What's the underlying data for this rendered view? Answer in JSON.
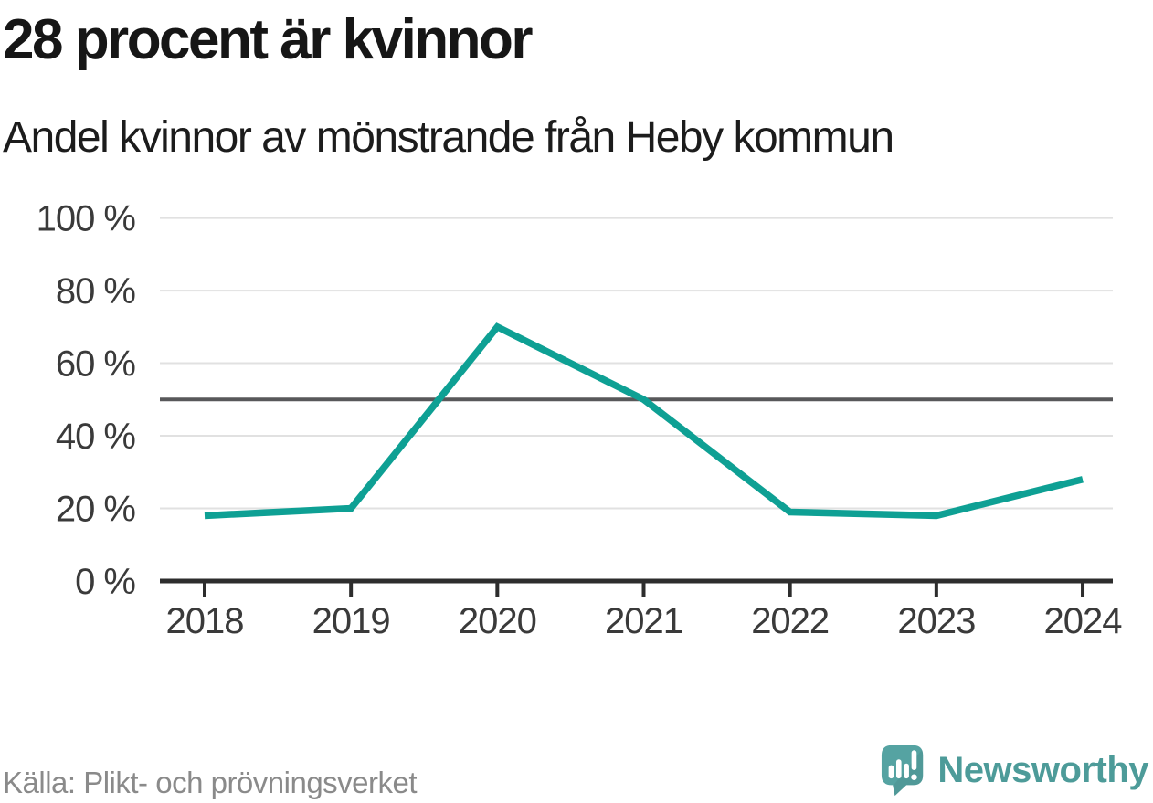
{
  "header": {
    "title": "28 procent är kvinnor",
    "subtitle": "Andel kvinnor av mönstrande från Heby kommun"
  },
  "chart_data": {
    "type": "line",
    "title": "28 procent är kvinnor",
    "subtitle": "Andel kvinnor av mönstrande från Heby kommun",
    "categories": [
      "2018",
      "2019",
      "2020",
      "2021",
      "2022",
      "2023",
      "2024"
    ],
    "series": [
      {
        "name": "Andel kvinnor av mönstrande",
        "values": [
          18,
          20,
          70,
          50,
          19,
          18,
          28
        ]
      }
    ],
    "unit": "percent",
    "ylim": [
      0,
      100
    ],
    "yticks": [
      0,
      20,
      40,
      60,
      80,
      100
    ],
    "ytick_labels": [
      "0 %",
      "20 %",
      "40 %",
      "60 %",
      "80 %",
      "100 %"
    ],
    "reference_line": 50,
    "grid": true,
    "legend": "none",
    "line_color": "#0ea094",
    "reference_line_color": "#58585a",
    "gridline_color": "#e1e1e1",
    "axis_color": "#2d2d2d",
    "tick_label_color": "#3a3a3a"
  },
  "footer": {
    "source": "Källa: Plikt- och prövningsverket",
    "brand": "Newsworthy",
    "brand_color": "#4d9b99",
    "brand_icon": "newsworthy-speech-bubble-bar-chart"
  }
}
